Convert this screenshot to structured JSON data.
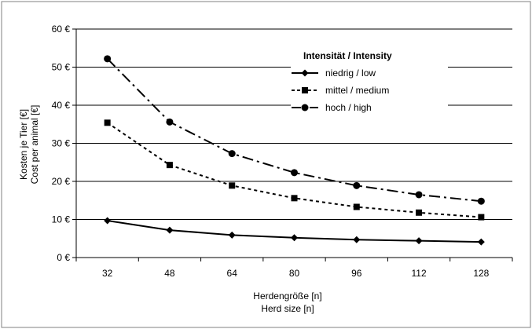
{
  "chart_data": {
    "type": "line",
    "xlabel_de": "Herdengröße [n]",
    "xlabel_en": "Herd size [n]",
    "ylabel_de": "Kosten je Tier [€]",
    "ylabel_en": "Cost per animal [€]",
    "x": [
      32,
      48,
      64,
      80,
      96,
      112,
      128
    ],
    "x_tick_labels": [
      "32",
      "48",
      "64",
      "80",
      "96",
      "112",
      "128"
    ],
    "ylim": [
      0,
      60
    ],
    "y_ticks": [
      0,
      10,
      20,
      30,
      40,
      50,
      60
    ],
    "y_tick_labels": [
      "0 €",
      "10 €",
      "20 €",
      "30 €",
      "40 €",
      "50 €",
      "60 €"
    ],
    "grid": "horizontal",
    "legend": {
      "title": "Intensität / Intensity",
      "placement": "upper-right"
    },
    "series": [
      {
        "name": "niedrig / low",
        "marker": "diamond",
        "line_style": "solid",
        "values": [
          9.7,
          7.2,
          5.9,
          5.2,
          4.7,
          4.4,
          4.1
        ]
      },
      {
        "name": "mittel / medium",
        "marker": "square",
        "line_style": "dashed",
        "values": [
          35.4,
          24.3,
          18.9,
          15.6,
          13.3,
          11.8,
          10.6
        ]
      },
      {
        "name": "hoch / high",
        "marker": "circle",
        "line_style": "dash-dot",
        "values": [
          52.2,
          35.6,
          27.3,
          22.3,
          18.9,
          16.5,
          14.8
        ]
      }
    ],
    "colors": {
      "line": "#000000",
      "grid": "#000000",
      "frame": "#808080"
    }
  }
}
